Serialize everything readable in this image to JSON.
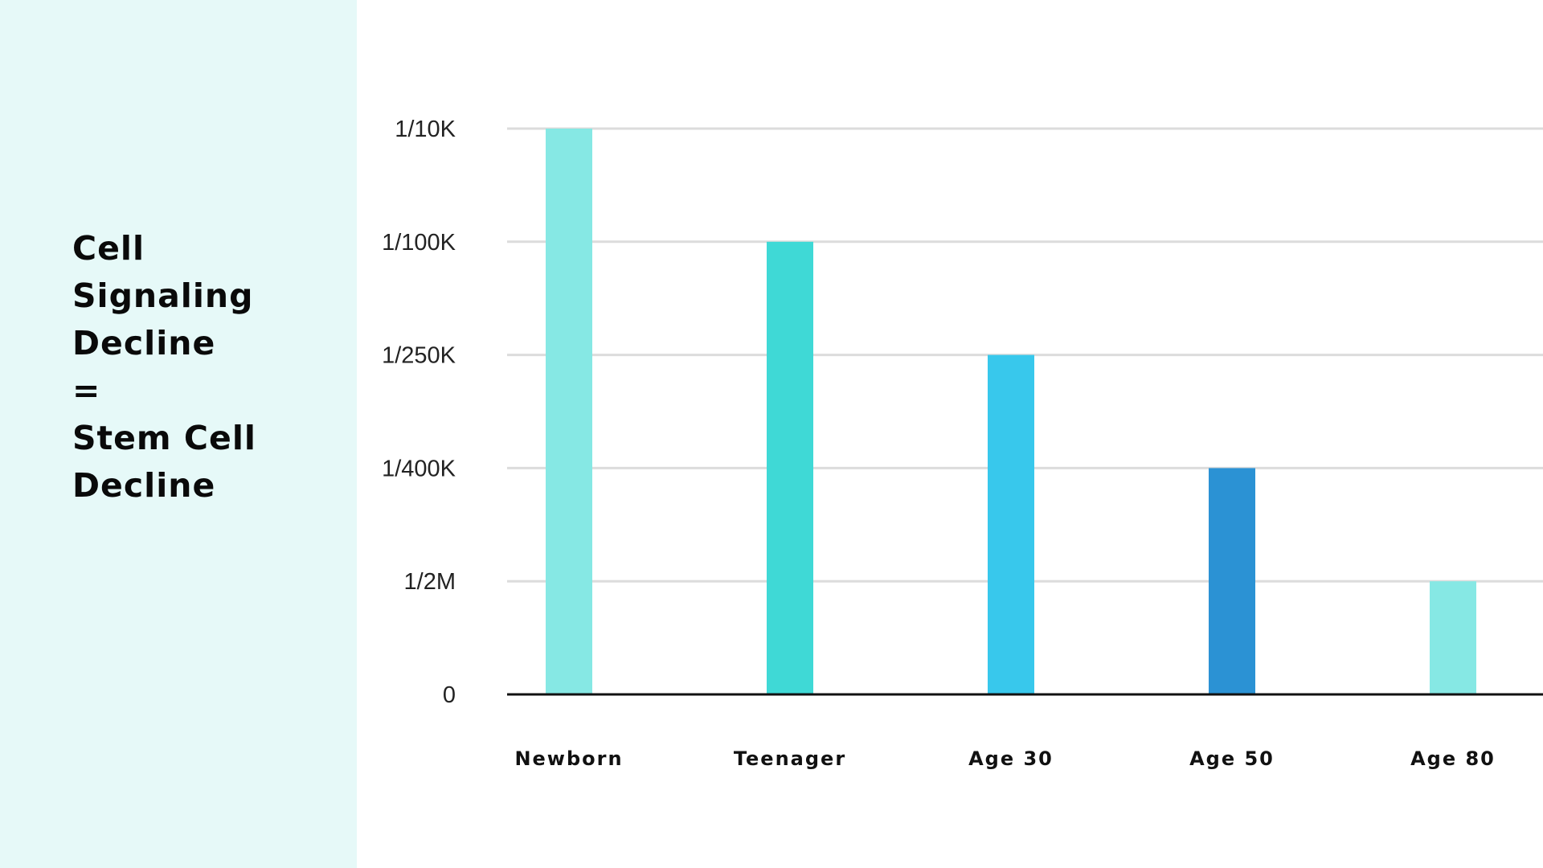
{
  "title_lines": [
    "Cell",
    "Signaling",
    "Decline",
    "=",
    "Stem Cell",
    "Decline"
  ],
  "colors": {
    "side_panel": "#e6f9f8",
    "gridline": "#dcdcdc",
    "baseline": "#111111"
  },
  "chart_data": {
    "type": "bar",
    "categories": [
      "Newborn",
      "Teenager",
      "Age 30",
      "Age 50",
      "Age 80"
    ],
    "values": [
      "1/10K",
      "1/100K",
      "1/250K",
      "1/400K",
      "1/2M"
    ],
    "bar_colors": [
      "#86e8e4",
      "#3fd9d6",
      "#38c8ec",
      "#2b92d4",
      "#86e8e4"
    ],
    "y_axis": {
      "scale": "categorical ordinal",
      "ticks": [
        "0",
        "1/2M",
        "1/400K",
        "1/250K",
        "1/100K",
        "1/10K"
      ]
    },
    "grid": true,
    "legend": "none",
    "title": "",
    "xlabel": "",
    "ylabel": ""
  }
}
